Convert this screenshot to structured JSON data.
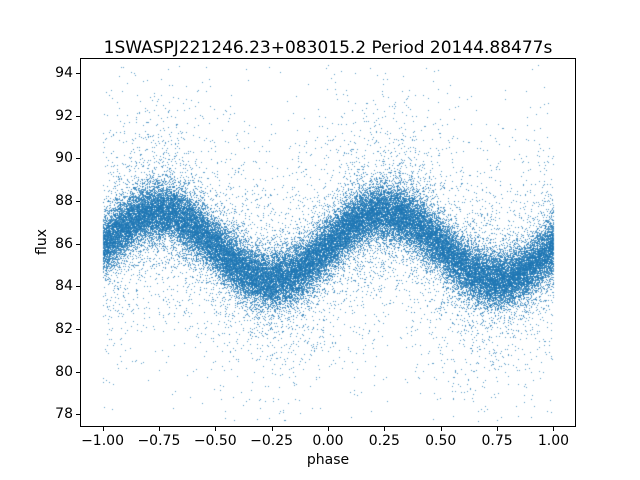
{
  "figure": {
    "background": "#ffffff",
    "text_color": "#000000"
  },
  "chart_data": {
    "type": "scatter",
    "title": "1SWASPJ221246.23+083015.2 Period 20144.88477s",
    "xlabel": "phase",
    "ylabel": "flux",
    "xlim": [
      -1.1,
      1.1
    ],
    "ylim": [
      77.4,
      94.7
    ],
    "xticks": [
      -1.0,
      -0.75,
      -0.5,
      -0.25,
      0.0,
      0.25,
      0.5,
      0.75,
      1.0
    ],
    "xtick_labels": [
      "−1.00",
      "−0.75",
      "−0.50",
      "−0.25",
      "0.00",
      "0.25",
      "0.50",
      "0.75",
      "1.00"
    ],
    "yticks": [
      78,
      80,
      82,
      84,
      86,
      88,
      90,
      92,
      94
    ],
    "ytick_labels": [
      "78",
      "80",
      "82",
      "84",
      "86",
      "88",
      "90",
      "92",
      "94"
    ],
    "grid": false,
    "legend": null,
    "marker_color": "#1f77b4",
    "marker_size_px": 1,
    "series_model": {
      "description": "Phase-folded light curve plotted over two cycles; dense sinusoidal band of points with sparse gaussian outliers",
      "x_range": [
        -1.0,
        1.0
      ],
      "center_mean_flux": 85.9,
      "amplitude": 1.6,
      "center_formula": "flux = 85.9 + 1.6 * sin(2*pi*phase)",
      "peak_phases": [
        -0.75,
        0.25
      ],
      "trough_phases": [
        -0.25,
        0.75
      ],
      "scatter_core_sigma": 0.65,
      "scatter_core_fraction": 0.8,
      "scatter_mid_sigma": 1.5,
      "scatter_mid_fraction": 0.12,
      "scatter_tail_sigma": 3.5,
      "scatter_tail_fraction": 0.08,
      "flux_clip_min": 77.7,
      "flux_clip_max": 94.45,
      "n_points": 55000,
      "point_alpha": 0.75,
      "seed": 12345
    }
  }
}
